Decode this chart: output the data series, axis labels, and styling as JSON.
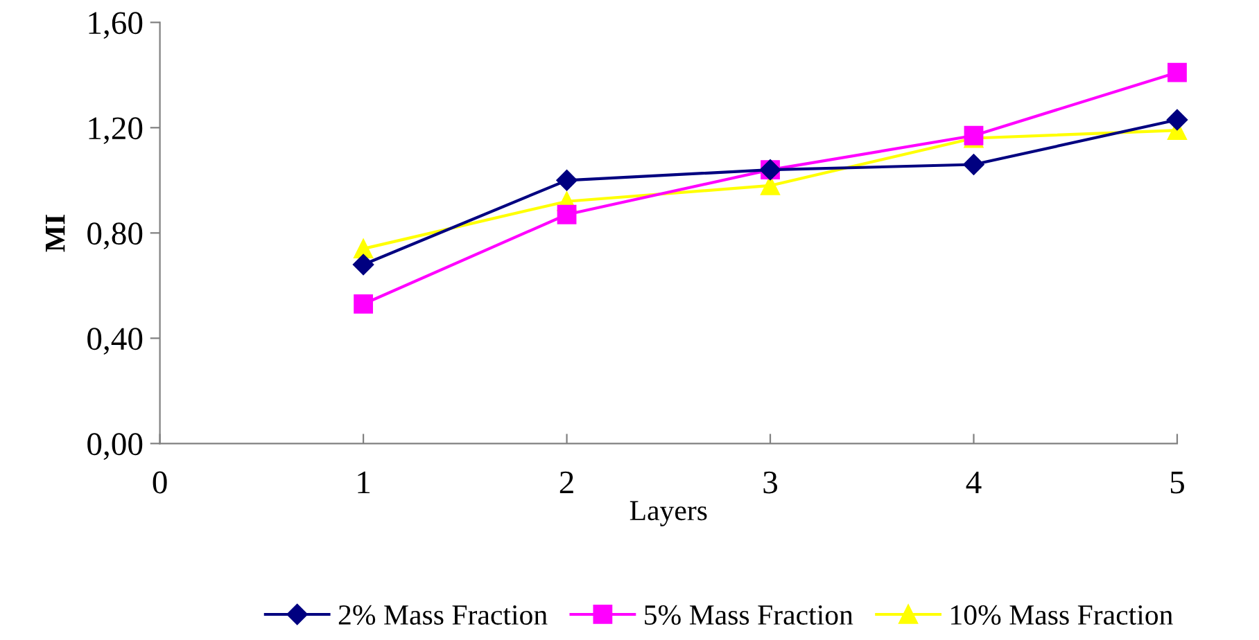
{
  "chart_data": {
    "type": "line",
    "xlabel": "Layers",
    "ylabel": "MI",
    "x": [
      1,
      2,
      3,
      4,
      5
    ],
    "xlim": [
      0,
      5
    ],
    "xticks": [
      0,
      1,
      2,
      3,
      4,
      5
    ],
    "ylim": [
      0,
      1.6
    ],
    "yticks": [
      {
        "value": 0,
        "label": "0,00"
      },
      {
        "value": 0.4,
        "label": "0,40"
      },
      {
        "value": 0.8,
        "label": "0,80"
      },
      {
        "value": 1.2,
        "label": "1,20"
      },
      {
        "value": 1.6,
        "label": "1,60"
      }
    ],
    "grid": false,
    "legend": "bottom",
    "series": [
      {
        "name": "2% Mass Fraction",
        "color": "#000080",
        "marker": "diamond",
        "values": [
          0.68,
          1.0,
          1.04,
          1.06,
          1.23
        ]
      },
      {
        "name": "5% Mass Fraction",
        "color": "#ff00ff",
        "marker": "square",
        "values": [
          0.53,
          0.87,
          1.04,
          1.17,
          1.41
        ]
      },
      {
        "name": "10% Mass Fraction",
        "color": "#ffff00",
        "marker": "triangle",
        "values": [
          0.74,
          0.92,
          0.98,
          1.16,
          1.19
        ]
      }
    ]
  }
}
